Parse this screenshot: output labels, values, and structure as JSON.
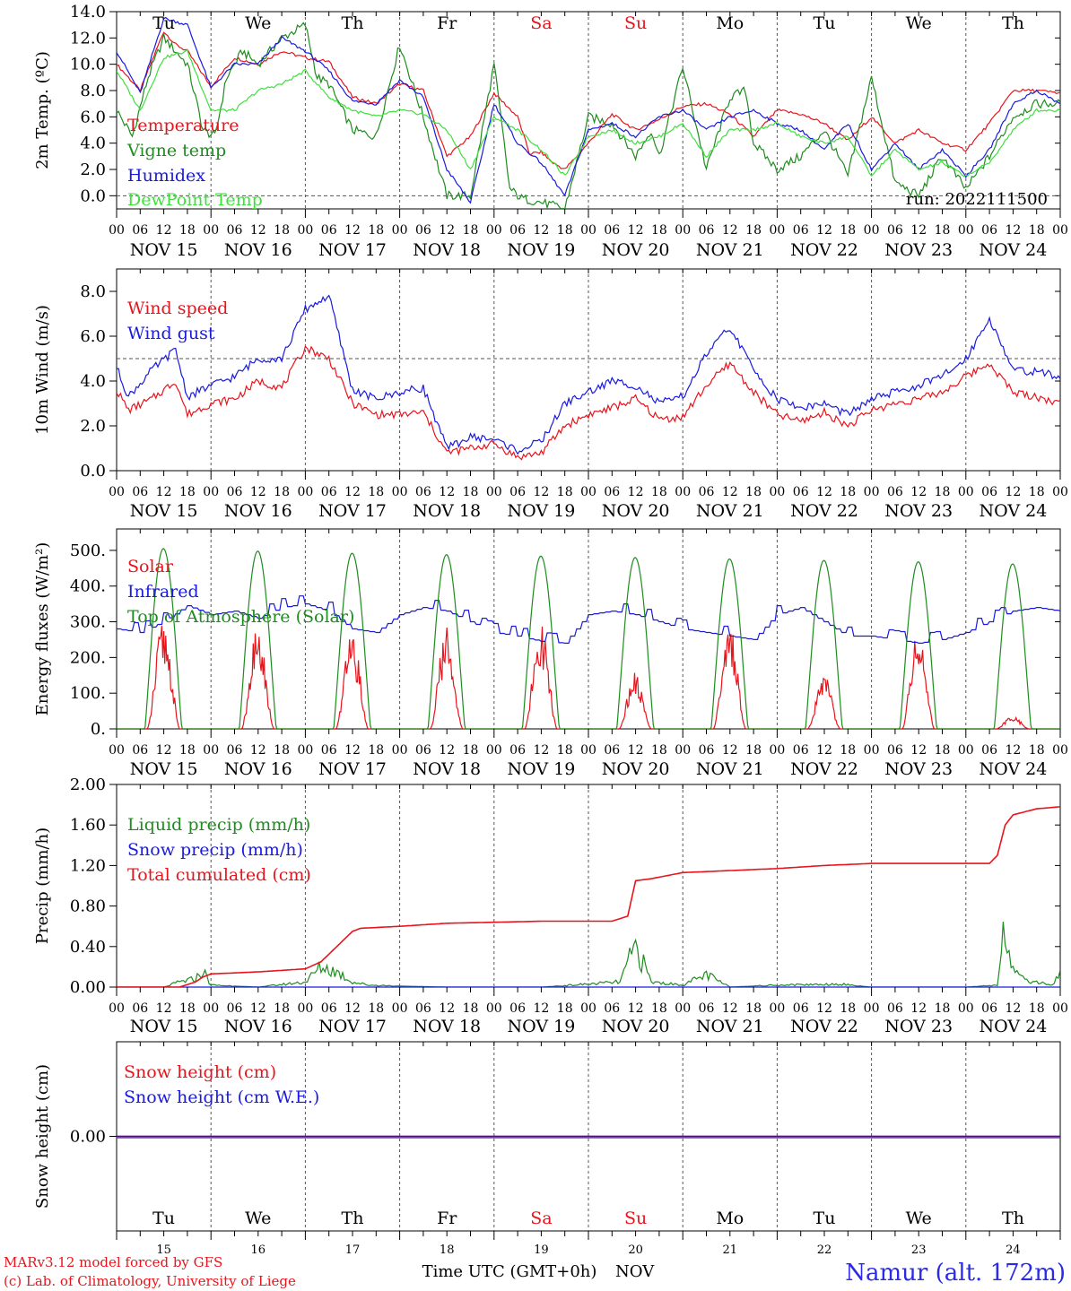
{
  "run_label": "run: 2022111500",
  "day_names": [
    "Tu",
    "We",
    "Th",
    "Fr",
    "Sa",
    "Su",
    "Mo",
    "Tu",
    "We",
    "Th"
  ],
  "day_name_colors": [
    "#000000",
    "#000000",
    "#000000",
    "#000000",
    "#e8141c",
    "#e8141c",
    "#000000",
    "#000000",
    "#000000",
    "#000000"
  ],
  "date_labels": [
    "NOV 15",
    "NOV 16",
    "NOV 17",
    "NOV 18",
    "NOV 19",
    "NOV 20",
    "NOV 21",
    "NOV 22",
    "NOV 23",
    "NOV 24"
  ],
  "hour_labels": [
    "00",
    "06",
    "12",
    "18"
  ],
  "final_hour_label": "00",
  "bottom_day_numbers": [
    "15",
    "16",
    "17",
    "18",
    "19",
    "20",
    "21",
    "22",
    "23",
    "24"
  ],
  "footer": {
    "model_line": "MARv3.12 model forced by GFS",
    "credit_line": "(c) Lab. of Climatology, University of Liege",
    "axis_title": "Time UTC (GMT+0h)",
    "month": "NOV",
    "station": "Namur (alt. 172m)"
  },
  "colors": {
    "red": "#e8141c",
    "green": "#1e8c1e",
    "blue": "#1a1ae0",
    "lightgreen": "#3ee03e",
    "purple": "#7a3ab0",
    "grid": "#555555"
  },
  "chart_data": [
    {
      "id": "temperature",
      "type": "line",
      "ylabel": "2m Temp. (ºC)",
      "ylim": [
        -1.0,
        14.0
      ],
      "yticks": [
        "0.0",
        "2.0",
        "4.0",
        "6.0",
        "8.0",
        "10.0",
        "12.0",
        "14.0"
      ],
      "ytick_values": [
        0,
        2,
        4,
        6,
        8,
        10,
        12,
        14
      ],
      "reference_line": 0,
      "x_unit": "hours since NOV 15 00 UTC",
      "series": [
        {
          "name": "Temperature",
          "color": "#e8141c",
          "x": [
            0,
            6,
            12,
            15,
            18,
            24,
            30,
            36,
            42,
            48,
            54,
            60,
            66,
            72,
            78,
            84,
            90,
            96,
            102,
            105,
            108,
            111,
            114,
            120,
            126,
            132,
            138,
            144,
            150,
            156,
            162,
            168,
            174,
            180,
            186,
            192,
            198,
            204,
            210,
            216,
            222,
            228,
            234,
            240
          ],
          "y": [
            10.0,
            8.0,
            12.5,
            11.5,
            11.0,
            8.3,
            10.5,
            10.0,
            11.0,
            10.5,
            10.2,
            7.5,
            7.0,
            8.5,
            8.0,
            3.0,
            4.5,
            7.8,
            6.0,
            3.2,
            3.3,
            2.5,
            2.0,
            4.0,
            6.2,
            5.0,
            5.8,
            6.8,
            7.0,
            6.2,
            4.5,
            6.5,
            6.2,
            5.5,
            4.2,
            6.0,
            4.0,
            5.0,
            4.0,
            3.5,
            5.5,
            8.0,
            8.0,
            7.8
          ]
        },
        {
          "name": "Vigne temp",
          "color": "#1e8c1e",
          "x": [
            0,
            4,
            8,
            12,
            18,
            22,
            25,
            28,
            32,
            36,
            42,
            48,
            51,
            54,
            60,
            66,
            72,
            78,
            84,
            90,
            96,
            100,
            103,
            108,
            114,
            120,
            126,
            132,
            136,
            138,
            144,
            150,
            156,
            160,
            162,
            168,
            174,
            180,
            186,
            192,
            198,
            204,
            210,
            216,
            222,
            228,
            234,
            240
          ],
          "y": [
            6.5,
            4.5,
            9.0,
            12.0,
            10.0,
            5.0,
            4.5,
            9.0,
            11.0,
            10.0,
            12.0,
            13.0,
            9.0,
            8.5,
            5.0,
            4.5,
            11.5,
            6.0,
            0.0,
            0.0,
            10.0,
            0.5,
            -0.2,
            -0.5,
            -1.0,
            6.0,
            5.5,
            3.0,
            5.0,
            3.0,
            9.8,
            2.0,
            7.5,
            8.0,
            4.0,
            2.0,
            3.0,
            5.0,
            1.5,
            9.0,
            1.0,
            0.0,
            3.0,
            0.5,
            3.0,
            6.0,
            7.0,
            7.0
          ]
        },
        {
          "name": "Humidex",
          "color": "#1a1ae0",
          "x": [
            0,
            6,
            12,
            18,
            24,
            30,
            36,
            42,
            48,
            54,
            60,
            66,
            72,
            78,
            84,
            90,
            96,
            102,
            108,
            114,
            120,
            126,
            132,
            138,
            144,
            150,
            156,
            162,
            168,
            174,
            180,
            186,
            192,
            198,
            204,
            210,
            216,
            222,
            228,
            234,
            240
          ],
          "y": [
            11.0,
            7.8,
            13.5,
            13.0,
            8.2,
            10.0,
            10.0,
            12.0,
            11.0,
            9.5,
            7.2,
            7.0,
            8.8,
            7.5,
            2.0,
            -0.5,
            7.0,
            4.0,
            2.5,
            0.0,
            5.0,
            5.5,
            4.5,
            6.0,
            6.5,
            5.0,
            6.0,
            6.5,
            5.5,
            5.0,
            3.5,
            5.5,
            2.0,
            4.0,
            2.0,
            3.5,
            1.5,
            3.5,
            7.0,
            8.0,
            7.0
          ]
        },
        {
          "name": "DewPoint Temp",
          "color": "#3ee03e",
          "x": [
            0,
            6,
            12,
            18,
            24,
            30,
            36,
            42,
            48,
            54,
            60,
            66,
            72,
            78,
            84,
            90,
            96,
            102,
            108,
            114,
            120,
            126,
            132,
            138,
            144,
            150,
            156,
            162,
            168,
            174,
            180,
            186,
            192,
            198,
            204,
            210,
            216,
            222,
            228,
            234,
            240
          ],
          "y": [
            9.5,
            6.5,
            10.5,
            11.0,
            6.5,
            6.5,
            8.0,
            8.5,
            9.5,
            7.5,
            6.5,
            6.0,
            6.5,
            6.2,
            5.0,
            2.0,
            6.0,
            5.0,
            3.5,
            1.5,
            4.5,
            5.0,
            4.0,
            4.5,
            5.5,
            3.0,
            5.0,
            5.0,
            5.5,
            4.5,
            4.0,
            4.5,
            1.5,
            3.5,
            2.0,
            2.5,
            1.5,
            2.5,
            5.0,
            6.5,
            6.5
          ]
        }
      ]
    },
    {
      "id": "wind",
      "type": "line",
      "ylabel": "10m Wind (m/s)",
      "ylim": [
        0,
        9.0
      ],
      "yticks": [
        "0.0",
        "2.0",
        "4.0",
        "6.0",
        "8.0"
      ],
      "ytick_values": [
        0,
        2,
        4,
        6,
        8
      ],
      "reference_line": 5,
      "x_unit": "hours since NOV 15 00 UTC",
      "series": [
        {
          "name": "Wind speed",
          "color": "#e8141c",
          "x": [
            0,
            3,
            9,
            15,
            18,
            24,
            30,
            36,
            42,
            48,
            54,
            60,
            66,
            72,
            78,
            84,
            90,
            96,
            102,
            108,
            114,
            120,
            126,
            132,
            138,
            144,
            150,
            156,
            162,
            168,
            174,
            180,
            186,
            192,
            198,
            204,
            210,
            216,
            222,
            228,
            234,
            240
          ],
          "y": [
            3.6,
            2.7,
            3.2,
            4.0,
            2.5,
            3.0,
            3.2,
            4.0,
            3.7,
            5.5,
            5.0,
            3.0,
            2.5,
            2.5,
            2.6,
            0.8,
            1.0,
            1.2,
            0.6,
            0.8,
            2.0,
            2.5,
            2.8,
            3.2,
            2.3,
            2.4,
            3.8,
            4.8,
            3.5,
            2.5,
            2.2,
            2.6,
            2.0,
            2.7,
            3.0,
            3.2,
            3.5,
            4.2,
            4.8,
            3.5,
            3.3,
            3.0
          ]
        },
        {
          "name": "Wind gust",
          "color": "#1a1ae0",
          "x": [
            0,
            3,
            9,
            15,
            18,
            24,
            30,
            36,
            42,
            48,
            54,
            60,
            66,
            72,
            78,
            84,
            90,
            96,
            102,
            108,
            114,
            120,
            126,
            132,
            138,
            144,
            150,
            156,
            162,
            168,
            174,
            180,
            186,
            192,
            198,
            204,
            210,
            216,
            222,
            228,
            234,
            240
          ],
          "y": [
            4.6,
            3.3,
            4.5,
            5.4,
            3.3,
            3.8,
            4.2,
            5.0,
            5.0,
            7.2,
            7.8,
            3.6,
            3.2,
            3.5,
            3.7,
            1.0,
            1.5,
            1.4,
            0.9,
            1.3,
            3.0,
            3.5,
            4.0,
            3.8,
            3.0,
            3.3,
            5.2,
            6.4,
            4.5,
            3.2,
            2.8,
            3.0,
            2.5,
            3.2,
            3.5,
            3.8,
            4.2,
            5.0,
            6.8,
            4.5,
            4.4,
            4.2
          ]
        }
      ]
    },
    {
      "id": "energy",
      "type": "line",
      "ylabel": "Energy fluxes (W/m²)",
      "ylim": [
        0,
        560
      ],
      "yticks": [
        "0.",
        "100.",
        "200.",
        "300.",
        "400.",
        "500."
      ],
      "ytick_values": [
        0,
        100,
        200,
        300,
        400,
        500
      ],
      "x_unit": "hours since NOV 15 00 UTC",
      "series": [
        {
          "name": "Solar",
          "color": "#e8141c",
          "day_peaks": [
            305,
            285,
            270,
            285,
            300,
            160,
            290,
            155,
            285,
            35
          ]
        },
        {
          "name": "Infrared",
          "color": "#1a1ae0",
          "x": [
            0,
            6,
            12,
            18,
            24,
            30,
            36,
            42,
            48,
            54,
            60,
            66,
            72,
            78,
            84,
            90,
            96,
            102,
            108,
            114,
            120,
            126,
            132,
            138,
            144,
            150,
            156,
            162,
            168,
            174,
            180,
            186,
            192,
            198,
            204,
            210,
            216,
            222,
            228,
            234,
            240
          ],
          "y": [
            280,
            270,
            300,
            345,
            320,
            330,
            310,
            340,
            350,
            330,
            280,
            270,
            320,
            340,
            330,
            300,
            270,
            260,
            245,
            240,
            320,
            330,
            320,
            300,
            280,
            270,
            260,
            250,
            320,
            340,
            300,
            260,
            260,
            250,
            240,
            250,
            270,
            300,
            330,
            340,
            330
          ]
        },
        {
          "name": "Top of Atmosphere (Solar)",
          "color": "#1e8c1e",
          "day_peaks": [
            505,
            498,
            492,
            488,
            484,
            480,
            476,
            472,
            468,
            462
          ]
        }
      ]
    },
    {
      "id": "precip",
      "type": "line",
      "ylabel": "Precip (mm/h)",
      "ylim": [
        0,
        2.0
      ],
      "yticks": [
        "0.00",
        "0.40",
        "0.80",
        "1.20",
        "1.60",
        "2.00"
      ],
      "ytick_values": [
        0,
        0.4,
        0.8,
        1.2,
        1.6,
        2.0
      ],
      "x_unit": "hours since NOV 15 00 UTC",
      "series": [
        {
          "name": "Liquid precip (mm/h)",
          "color": "#1e8c1e",
          "x": [
            0,
            12,
            16,
            20,
            22,
            24,
            36,
            48,
            52,
            56,
            60,
            64,
            72,
            84,
            96,
            108,
            128,
            132,
            136,
            144,
            150,
            156,
            168,
            184,
            192,
            216,
            224,
            226,
            228,
            230,
            234,
            238,
            240
          ],
          "y": [
            0,
            0,
            0.05,
            0.08,
            0.16,
            0.02,
            0.0,
            0.05,
            0.2,
            0.15,
            0.05,
            0.02,
            0.01,
            0.0,
            0.0,
            0.0,
            0.05,
            0.4,
            0.05,
            0.02,
            0.12,
            0.0,
            0.02,
            0.03,
            0.0,
            0.0,
            0.02,
            0.72,
            0.15,
            0.08,
            0.05,
            0.02,
            0.15
          ]
        },
        {
          "name": "Snow precip (mm/h)",
          "color": "#1a1ae0",
          "x": [
            0,
            240
          ],
          "y": [
            0,
            0
          ]
        },
        {
          "name": "Total cumulated (cm)",
          "color": "#e8141c",
          "x": [
            0,
            16,
            20,
            22,
            24,
            36,
            48,
            52,
            56,
            60,
            62,
            72,
            84,
            96,
            108,
            120,
            126,
            130,
            132,
            136,
            144,
            156,
            168,
            180,
            192,
            204,
            216,
            222,
            224,
            226,
            228,
            234,
            240
          ],
          "y": [
            0,
            0,
            0.05,
            0.1,
            0.13,
            0.15,
            0.18,
            0.25,
            0.4,
            0.55,
            0.58,
            0.6,
            0.63,
            0.64,
            0.65,
            0.65,
            0.65,
            0.7,
            1.05,
            1.07,
            1.13,
            1.15,
            1.17,
            1.2,
            1.22,
            1.22,
            1.22,
            1.22,
            1.3,
            1.6,
            1.7,
            1.76,
            1.78
          ]
        }
      ]
    },
    {
      "id": "snow",
      "type": "line",
      "ylabel": "Snow height (cm)",
      "yticks": [
        "0.00"
      ],
      "ytick_values": [
        0
      ],
      "ylim": [
        -1,
        1
      ],
      "x_unit": "hours since NOV 15 00 UTC",
      "series": [
        {
          "name": "Snow height (cm)",
          "color": "#e8141c",
          "x": [
            0,
            240
          ],
          "y": [
            0,
            0
          ]
        },
        {
          "name": "Snow height (cm W.E.)",
          "color": "#1a1ae0",
          "x": [
            0,
            240
          ],
          "y": [
            0,
            0
          ]
        }
      ]
    }
  ]
}
